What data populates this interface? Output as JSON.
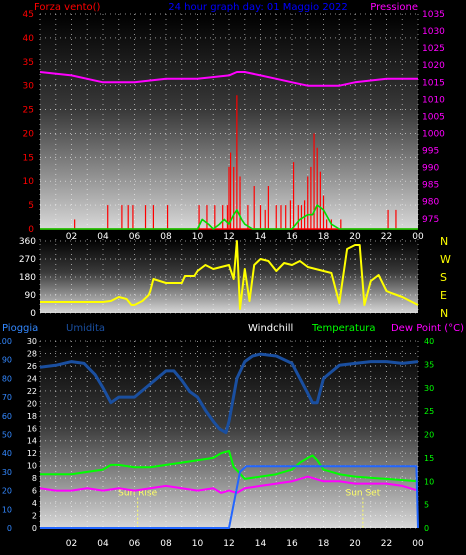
{
  "colors": {
    "wind": "#ff0000",
    "gust": "#00dd00",
    "pressure": "#ff00ff",
    "direction": "#ffff00",
    "rain": "#2266ff",
    "humidity": "#1a4fa0",
    "windchill": "#ffffff",
    "temperature": "#00ff00",
    "dewpoint": "#ff00ff",
    "rain_axis": "#3388ff",
    "temp_axis": "#00ff00",
    "title": "#0000ff"
  },
  "chart_data": [
    {
      "type": "line",
      "id": "wind_pressure",
      "title": "24 hour graph day: 01 Maggio 2022",
      "left_label": "Forza vento()",
      "right_label": "Pressione",
      "x_ticks": [
        "02",
        "04",
        "06",
        "08",
        "10",
        "12",
        "14",
        "16",
        "18",
        "20",
        "22",
        "00"
      ],
      "y_left_ticks": [
        0,
        5,
        10,
        15,
        20,
        25,
        30,
        35,
        40,
        45
      ],
      "y_left_lim": [
        0,
        45
      ],
      "y_right_ticks": [
        975,
        980,
        985,
        990,
        995,
        1000,
        1005,
        1010,
        1015,
        1020,
        1025,
        1030,
        1035
      ],
      "y_right_lim": [
        972,
        1035
      ],
      "pressure": {
        "x": [
          0,
          2,
          4,
          6,
          8,
          10,
          12,
          12.5,
          13,
          14,
          15,
          16,
          17,
          18,
          19,
          20,
          22,
          24
        ],
        "y": [
          1018,
          1017,
          1015,
          1015,
          1016,
          1016,
          1017,
          1018,
          1018,
          1017,
          1016,
          1015,
          1014,
          1014,
          1014,
          1015,
          1016,
          1016
        ]
      },
      "wind_spikes": {
        "x": [
          2.2,
          4.3,
          5.2,
          5.6,
          5.9,
          6.7,
          7.2,
          8.1,
          10.1,
          10.6,
          11.1,
          11.6,
          11.9,
          12.0,
          12.1,
          12.3,
          12.5,
          12.7,
          13.2,
          13.6,
          14.0,
          14.3,
          14.5,
          15.0,
          15.3,
          15.6,
          15.9,
          16.1,
          16.4,
          16.6,
          16.8,
          17.0,
          17.2,
          17.4,
          17.6,
          17.8,
          18.0,
          18.2,
          18.5,
          19.1,
          22.1,
          22.6
        ],
        "y": [
          2,
          5,
          5,
          5,
          5,
          5,
          5,
          5,
          5,
          5,
          5,
          5,
          5,
          13,
          16,
          13,
          28,
          11,
          5,
          9,
          5,
          4,
          9,
          5,
          5,
          5,
          6,
          14,
          5,
          5,
          6,
          11,
          13,
          20,
          17,
          12,
          7,
          2,
          2,
          2,
          4,
          4
        ]
      },
      "gust": {
        "x": [
          0,
          9,
          10,
          10.3,
          10.7,
          11,
          11.4,
          11.7,
          12,
          12.3,
          12.5,
          12.8,
          13,
          13.5,
          14,
          14.5,
          15,
          15.5,
          16,
          16.5,
          17,
          17.3,
          17.6,
          18,
          18.5,
          19,
          24
        ],
        "y": [
          0,
          0,
          0,
          2,
          1,
          0,
          1,
          2,
          1,
          3,
          4,
          2,
          1,
          0,
          0,
          0,
          0,
          0,
          0,
          2,
          3,
          3,
          5,
          4,
          1,
          0,
          0
        ]
      },
      "baseline": 0
    },
    {
      "type": "line",
      "id": "wind_direction",
      "y_ticks": [
        0,
        90,
        180,
        270,
        360
      ],
      "y_lim": [
        0,
        370
      ],
      "compass_labels": [
        "N",
        "W",
        "S",
        "E",
        "N"
      ],
      "direction": {
        "x": [
          0,
          4,
          4.5,
          5,
          5.5,
          5.8,
          6,
          6.5,
          6.9,
          7,
          7.2,
          8,
          8.5,
          9,
          9.2,
          9.8,
          10,
          10.5,
          11,
          11.5,
          12,
          12.3,
          12.5,
          12.7,
          13,
          13.3,
          13.6,
          14,
          14.5,
          15,
          15.5,
          16,
          16.5,
          17,
          17.5,
          18,
          18.5,
          19,
          19.5,
          20,
          20.3,
          20.6,
          21,
          21.5,
          22,
          22.3,
          23,
          24
        ],
        "y": [
          55,
          55,
          60,
          80,
          70,
          40,
          40,
          60,
          90,
          110,
          170,
          150,
          150,
          150,
          185,
          185,
          210,
          240,
          220,
          230,
          240,
          170,
          360,
          20,
          220,
          60,
          240,
          270,
          260,
          210,
          250,
          240,
          260,
          230,
          220,
          210,
          200,
          50,
          320,
          340,
          340,
          40,
          160,
          190,
          110,
          100,
          80,
          40
        ]
      }
    },
    {
      "type": "line",
      "id": "weather",
      "labels": {
        "rain": "Pioggia",
        "humidity": "Umidita",
        "windchill": "Windchill",
        "temperature": "Temperatura",
        "dewpoint": "Dew Point (°C)"
      },
      "x_ticks": [
        "02",
        "04",
        "06",
        "08",
        "10",
        "12",
        "14",
        "16",
        "18",
        "20",
        "22",
        "00"
      ],
      "y_rain_ticks": [
        0,
        10,
        20,
        30,
        40,
        50,
        60,
        70,
        80,
        90,
        100
      ],
      "y_rain_lim": [
        0,
        100
      ],
      "y_mid_ticks": [
        0,
        2,
        4,
        6,
        8,
        10,
        12,
        14,
        16,
        18,
        20,
        22,
        24,
        26,
        28,
        30
      ],
      "y_mid_lim": [
        0,
        30
      ],
      "y_temp_ticks": [
        0,
        5,
        10,
        15,
        20,
        25,
        30,
        35,
        40
      ],
      "y_temp_lim": [
        0,
        40
      ],
      "annotations": [
        {
          "text": "Sun Rise",
          "x": 6.2
        },
        {
          "text": "Sun Set",
          "x": 20.5
        }
      ],
      "rain": {
        "x": [
          0,
          11.9,
          12.0,
          12.7,
          13.1,
          14,
          23.9,
          24
        ],
        "y": [
          0,
          0,
          0,
          30,
          33,
          33,
          33,
          0
        ]
      },
      "humidity": {
        "x": [
          0,
          1,
          2,
          2.8,
          3.5,
          4,
          4.5,
          5,
          6,
          7,
          8,
          8.5,
          9,
          9.5,
          10,
          10.5,
          11,
          11.4,
          11.8,
          12,
          12.5,
          13,
          13.5,
          14,
          15,
          16,
          16.5,
          17,
          17.3,
          17.6,
          18,
          19,
          20,
          21,
          22,
          23,
          24
        ],
        "y": [
          86,
          87,
          89,
          88,
          82,
          75,
          67,
          70,
          70,
          77,
          84,
          84,
          79,
          73,
          70,
          63,
          57,
          53,
          51,
          57,
          80,
          89,
          92,
          93,
          92,
          88,
          80,
          72,
          67,
          67,
          80,
          87,
          88,
          89,
          89,
          88,
          89
        ]
      },
      "temperature": {
        "x": [
          0,
          2,
          3,
          4,
          4.5,
          5,
          6,
          7,
          8,
          9,
          10,
          11,
          11.5,
          12,
          12.3,
          12.6,
          13,
          14,
          15,
          16,
          16.5,
          17,
          17.3,
          17.6,
          18,
          19,
          20,
          22,
          24
        ],
        "y": [
          11.5,
          11.5,
          12,
          12.5,
          13.5,
          13.5,
          13,
          13,
          13.5,
          14,
          14.5,
          15,
          16,
          16.5,
          13,
          12,
          10.5,
          11,
          11.5,
          12.5,
          14,
          15,
          15.5,
          14.5,
          12.5,
          11.5,
          11,
          10.5,
          10
        ]
      },
      "dewpoint": {
        "x": [
          0,
          1,
          2,
          3,
          4,
          5,
          6,
          7,
          8,
          9,
          10,
          11,
          11.5,
          12,
          12.5,
          13,
          14,
          15,
          16,
          17,
          17.5,
          18,
          19,
          20,
          21,
          22,
          23,
          24
        ],
        "y": [
          8.5,
          8,
          8,
          8.5,
          8,
          8.5,
          8,
          8.5,
          9,
          8.5,
          8,
          8.5,
          7.5,
          8,
          7.5,
          8.5,
          9,
          9.5,
          10,
          11,
          10.5,
          10,
          10,
          9.5,
          9.5,
          9.5,
          9,
          8
        ]
      }
    }
  ]
}
